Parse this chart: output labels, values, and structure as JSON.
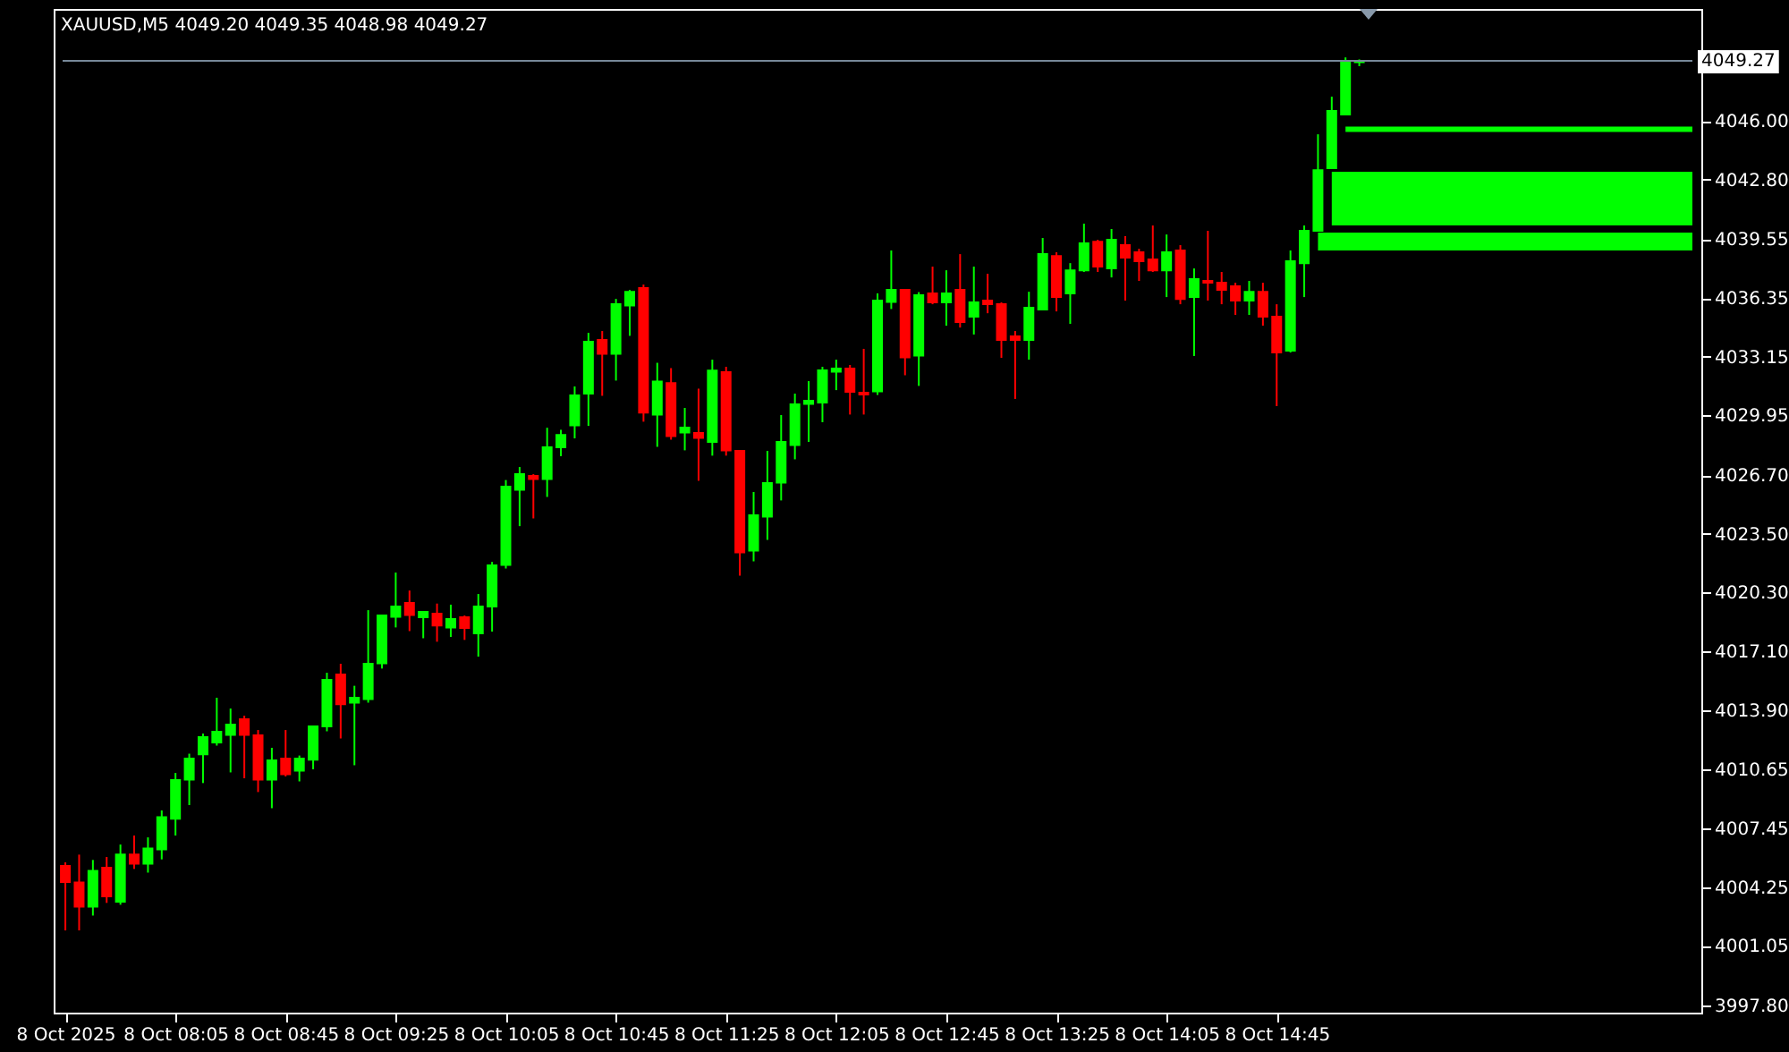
{
  "chart_data": {
    "type": "candlestick",
    "title": "XAUUSD,M5  4049.20 4049.35 4048.98 4049.27",
    "x": [
      "2025-10-08T07:25",
      "2025-10-08T07:30",
      "2025-10-08T07:35",
      "2025-10-08T07:40",
      "2025-10-08T07:45",
      "2025-10-08T07:50",
      "2025-10-08T07:55",
      "2025-10-08T08:00",
      "2025-10-08T08:05",
      "2025-10-08T08:10",
      "2025-10-08T08:15",
      "2025-10-08T08:20",
      "2025-10-08T08:25",
      "2025-10-08T08:30",
      "2025-10-08T08:35",
      "2025-10-08T08:40",
      "2025-10-08T08:45",
      "2025-10-08T08:50",
      "2025-10-08T08:55",
      "2025-10-08T09:00",
      "2025-10-08T09:05",
      "2025-10-08T09:10",
      "2025-10-08T09:15",
      "2025-10-08T09:20",
      "2025-10-08T09:25",
      "2025-10-08T09:30",
      "2025-10-08T09:35",
      "2025-10-08T09:40",
      "2025-10-08T09:45",
      "2025-10-08T09:50",
      "2025-10-08T09:55",
      "2025-10-08T10:00",
      "2025-10-08T10:05",
      "2025-10-08T10:10",
      "2025-10-08T10:15",
      "2025-10-08T10:20",
      "2025-10-08T10:25",
      "2025-10-08T10:30",
      "2025-10-08T10:35",
      "2025-10-08T10:40",
      "2025-10-08T10:45",
      "2025-10-08T10:50",
      "2025-10-08T10:55",
      "2025-10-08T11:00",
      "2025-10-08T11:05",
      "2025-10-08T11:10",
      "2025-10-08T11:15",
      "2025-10-08T11:20",
      "2025-10-08T11:25",
      "2025-10-08T11:30",
      "2025-10-08T11:35",
      "2025-10-08T11:40",
      "2025-10-08T11:45",
      "2025-10-08T11:50",
      "2025-10-08T11:55",
      "2025-10-08T12:00",
      "2025-10-08T12:05",
      "2025-10-08T12:10",
      "2025-10-08T12:15",
      "2025-10-08T12:20",
      "2025-10-08T12:25",
      "2025-10-08T12:30",
      "2025-10-08T12:35",
      "2025-10-08T12:40",
      "2025-10-08T12:45",
      "2025-10-08T12:50",
      "2025-10-08T12:55",
      "2025-10-08T13:00",
      "2025-10-08T13:05",
      "2025-10-08T13:10",
      "2025-10-08T13:15",
      "2025-10-08T13:20",
      "2025-10-08T13:25",
      "2025-10-08T13:30",
      "2025-10-08T13:35",
      "2025-10-08T13:40",
      "2025-10-08T13:45",
      "2025-10-08T13:50",
      "2025-10-08T13:55",
      "2025-10-08T14:00",
      "2025-10-08T14:05",
      "2025-10-08T14:10",
      "2025-10-08T14:15",
      "2025-10-08T14:20",
      "2025-10-08T14:25",
      "2025-10-08T14:30",
      "2025-10-08T14:35",
      "2025-10-08T14:40",
      "2025-10-08T14:45",
      "2025-10-08T14:50",
      "2025-10-08T14:55",
      "2025-10-08T15:00",
      "2025-10-08T15:05",
      "2025-10-08T15:10",
      "2025-10-08T15:15"
    ],
    "ohlc": [
      [
        4005.4,
        4005.6,
        4001.89,
        4004.53
      ],
      [
        4004.5,
        4006.02,
        4001.89,
        4003.19
      ],
      [
        4003.19,
        4005.73,
        4002.7,
        4005.14
      ],
      [
        4005.31,
        4005.89,
        4003.39,
        4003.75
      ],
      [
        4003.45,
        4006.57,
        4003.29,
        4006.02
      ],
      [
        4006.02,
        4007.06,
        4005.24,
        4005.53
      ],
      [
        4005.53,
        4006.96,
        4005.04,
        4006.35
      ],
      [
        4006.31,
        4008.43,
        4005.76,
        4008.06
      ],
      [
        4007.97,
        4010.47,
        4007.06,
        4010.08
      ],
      [
        4010.11,
        4011.52,
        4008.72,
        4011.25
      ],
      [
        4011.48,
        4012.62,
        4009.92,
        4012.42
      ],
      [
        4012.13,
        4014.57,
        4011.96,
        4012.71
      ],
      [
        4012.55,
        4013.98,
        4010.5,
        4013.1
      ],
      [
        4013.4,
        4013.59,
        4010.18,
        4012.55
      ],
      [
        4012.52,
        4012.81,
        4009.43,
        4010.11
      ],
      [
        4010.11,
        4011.84,
        4008.55,
        4011.16
      ],
      [
        4011.25,
        4012.81,
        4010.28,
        4010.4
      ],
      [
        4010.6,
        4011.42,
        4010.01,
        4011.25
      ],
      [
        4011.19,
        4013.01,
        4010.67,
        4013.01
      ],
      [
        4013.01,
        4015.93,
        4012.74,
        4015.54
      ],
      [
        4015.83,
        4016.42,
        4012.35,
        4014.21
      ],
      [
        4014.3,
        4015.22,
        4010.89,
        4014.57
      ],
      [
        4014.5,
        4019.34,
        4014.3,
        4016.42
      ],
      [
        4016.45,
        4019.05,
        4016.16,
        4019.05
      ],
      [
        4018.98,
        4021.39,
        4018.4,
        4019.54
      ],
      [
        4019.73,
        4020.41,
        4018.2,
        4019.08
      ],
      [
        4018.95,
        4019.25,
        4017.81,
        4019.25
      ],
      [
        4019.15,
        4019.7,
        4017.62,
        4018.5
      ],
      [
        4018.4,
        4019.64,
        4017.88,
        4018.86
      ],
      [
        4018.95,
        4019.05,
        4017.72,
        4018.37
      ],
      [
        4018.08,
        4020.22,
        4016.81,
        4019.54
      ],
      [
        4019.54,
        4021.97,
        4018.17,
        4021.78
      ],
      [
        4021.81,
        4026.43,
        4021.61,
        4026.07
      ],
      [
        4025.9,
        4027.14,
        4023.92,
        4026.75
      ],
      [
        4026.65,
        4026.75,
        4024.34,
        4026.49
      ],
      [
        4026.49,
        4029.28,
        4025.51,
        4028.21
      ],
      [
        4028.21,
        4029.17,
        4027.73,
        4028.88
      ],
      [
        4029.41,
        4031.53,
        4028.7,
        4031.04
      ],
      [
        4031.14,
        4034.45,
        4029.38,
        4033.97
      ],
      [
        4034.06,
        4034.55,
        4031.02,
        4033.31
      ],
      [
        4033.31,
        4036.3,
        4031.85,
        4036.01
      ],
      [
        4035.94,
        4036.79,
        4034.29,
        4036.69
      ],
      [
        4036.89,
        4037.08,
        4029.61,
        4030.1
      ],
      [
        4029.99,
        4032.82,
        4028.24,
        4031.8
      ],
      [
        4031.71,
        4032.53,
        4028.63,
        4028.83
      ],
      [
        4029.02,
        4030.36,
        4028.05,
        4029.29
      ],
      [
        4028.99,
        4031.41,
        4026.39,
        4028.73
      ],
      [
        4028.51,
        4032.99,
        4027.76,
        4032.4
      ],
      [
        4032.31,
        4032.6,
        4027.76,
        4028.05
      ],
      [
        4028.02,
        4028.02,
        4021.22,
        4022.49
      ],
      [
        4022.59,
        4025.78,
        4022.0,
        4024.51
      ],
      [
        4024.44,
        4028.02,
        4023.17,
        4026.26
      ],
      [
        4026.29,
        4029.97,
        4025.32,
        4028.51
      ],
      [
        4028.34,
        4031.14,
        4027.56,
        4030.55
      ],
      [
        4030.58,
        4031.82,
        4028.51,
        4030.75
      ],
      [
        4030.65,
        4032.6,
        4029.58,
        4032.41
      ],
      [
        4032.34,
        4032.99,
        4031.33,
        4032.5
      ],
      [
        4032.5,
        4032.7,
        4030.0,
        4031.24
      ],
      [
        4031.19,
        4033.58,
        4030.0,
        4031.09
      ],
      [
        4031.26,
        4036.6,
        4031.07,
        4036.21
      ],
      [
        4036.14,
        4038.94,
        4035.75,
        4036.79
      ],
      [
        4036.79,
        4036.79,
        4032.14,
        4033.12
      ],
      [
        4033.21,
        4036.67,
        4031.56,
        4036.5
      ],
      [
        4036.6,
        4038.06,
        4036.01,
        4036.11
      ],
      [
        4036.11,
        4037.86,
        4034.84,
        4036.6
      ],
      [
        4036.79,
        4038.74,
        4034.74,
        4035.04
      ],
      [
        4035.33,
        4038.06,
        4034.36,
        4036.11
      ],
      [
        4036.21,
        4037.67,
        4035.52,
        4036.01
      ],
      [
        4036.01,
        4036.11,
        4033.09,
        4034.06
      ],
      [
        4034.26,
        4034.55,
        4030.85,
        4034.06
      ],
      [
        4034.06,
        4036.69,
        4032.99,
        4035.82
      ],
      [
        4035.72,
        4039.62,
        4035.72,
        4038.74
      ],
      [
        4038.64,
        4038.84,
        4035.62,
        4036.4
      ],
      [
        4036.6,
        4038.25,
        4034.94,
        4037.86
      ],
      [
        4037.86,
        4040.4,
        4037.77,
        4039.33
      ],
      [
        4039.42,
        4039.52,
        4037.77,
        4038.06
      ],
      [
        4037.96,
        4040.11,
        4037.47,
        4039.52
      ],
      [
        4039.23,
        4039.72,
        4036.21,
        4038.55
      ],
      [
        4038.84,
        4039.03,
        4037.28,
        4038.35
      ],
      [
        4038.45,
        4040.3,
        4037.77,
        4037.86
      ],
      [
        4037.86,
        4039.81,
        4036.4,
        4038.84
      ],
      [
        4038.94,
        4039.23,
        4036.01,
        4036.3
      ],
      [
        4036.4,
        4037.96,
        4033.19,
        4037.38
      ],
      [
        4037.28,
        4040.01,
        4036.21,
        4037.18
      ],
      [
        4037.18,
        4037.77,
        4036.01,
        4036.79
      ],
      [
        4036.99,
        4037.18,
        4035.43,
        4036.21
      ],
      [
        4036.21,
        4037.28,
        4035.43,
        4036.69
      ],
      [
        4036.69,
        4037.18,
        4034.84,
        4035.33
      ],
      [
        4035.33,
        4036.01,
        4030.46,
        4033.38
      ],
      [
        4033.48,
        4038.94,
        4033.38,
        4038.35
      ],
      [
        4038.25,
        4040.3,
        4036.4,
        4040.01
      ],
      [
        4040.01,
        4045.27,
        4040.01,
        4043.32
      ],
      [
        4043.42,
        4047.32,
        4043.42,
        4046.54
      ],
      [
        4046.35,
        4049.46,
        4046.35,
        4049.17
      ],
      [
        4049.2,
        4049.35,
        4048.98,
        4049.27
      ]
    ],
    "xlim": [
      "2025-10-08T07:24",
      "2025-10-08T17:16"
    ],
    "xticks": [
      {
        "value": "2025-10-08T07:25",
        "label": "8 Oct 2025"
      },
      {
        "value": "2025-10-08T08:05",
        "label": "8 Oct 08:05"
      },
      {
        "value": "2025-10-08T08:45",
        "label": "8 Oct 08:45"
      },
      {
        "value": "2025-10-08T09:25",
        "label": "8 Oct 09:25"
      },
      {
        "value": "2025-10-08T10:05",
        "label": "8 Oct 10:05"
      },
      {
        "value": "2025-10-08T10:45",
        "label": "8 Oct 10:45"
      },
      {
        "value": "2025-10-08T11:25",
        "label": "8 Oct 11:25"
      },
      {
        "value": "2025-10-08T12:05",
        "label": "8 Oct 12:05"
      },
      {
        "value": "2025-10-08T12:45",
        "label": "8 Oct 12:45"
      },
      {
        "value": "2025-10-08T13:25",
        "label": "8 Oct 13:25"
      },
      {
        "value": "2025-10-08T14:05",
        "label": "8 Oct 14:05"
      },
      {
        "value": "2025-10-08T14:45",
        "label": "8 Oct 14:45"
      }
    ],
    "ylim": [
      3997.41,
      4052.1
    ],
    "yticks": [
      {
        "value": 3997.8,
        "label": "3997.80"
      },
      {
        "value": 4001.05,
        "label": "4001.05"
      },
      {
        "value": 4004.25,
        "label": "4004.25"
      },
      {
        "value": 4007.45,
        "label": "4007.45"
      },
      {
        "value": 4010.65,
        "label": "4010.65"
      },
      {
        "value": 4013.9,
        "label": "4013.90"
      },
      {
        "value": 4017.1,
        "label": "4017.10"
      },
      {
        "value": 4020.3,
        "label": "4020.30"
      },
      {
        "value": 4023.5,
        "label": "4023.50"
      },
      {
        "value": 4026.7,
        "label": "4026.70"
      },
      {
        "value": 4029.95,
        "label": "4029.95"
      },
      {
        "value": 4033.15,
        "label": "4033.15"
      },
      {
        "value": 4036.35,
        "label": "4036.35"
      },
      {
        "value": 4039.55,
        "label": "4039.55"
      },
      {
        "value": 4042.8,
        "label": "4042.80"
      },
      {
        "value": 4046.0,
        "label": "4046.00"
      }
    ],
    "ref_lines": [
      {
        "axis": "y",
        "value": 4049.27,
        "label": "4049.27",
        "color": "#778899"
      },
      {
        "axis": "y",
        "value": 4045.55,
        "color": "#00ff00"
      }
    ],
    "bands": [
      {
        "axis": "y",
        "from": 4040.3,
        "to": 4043.23,
        "color": "#00ff00"
      },
      {
        "axis": "y",
        "from": 4038.94,
        "to": 4039.91,
        "color": "#00ff00"
      }
    ],
    "grid": false
  }
}
